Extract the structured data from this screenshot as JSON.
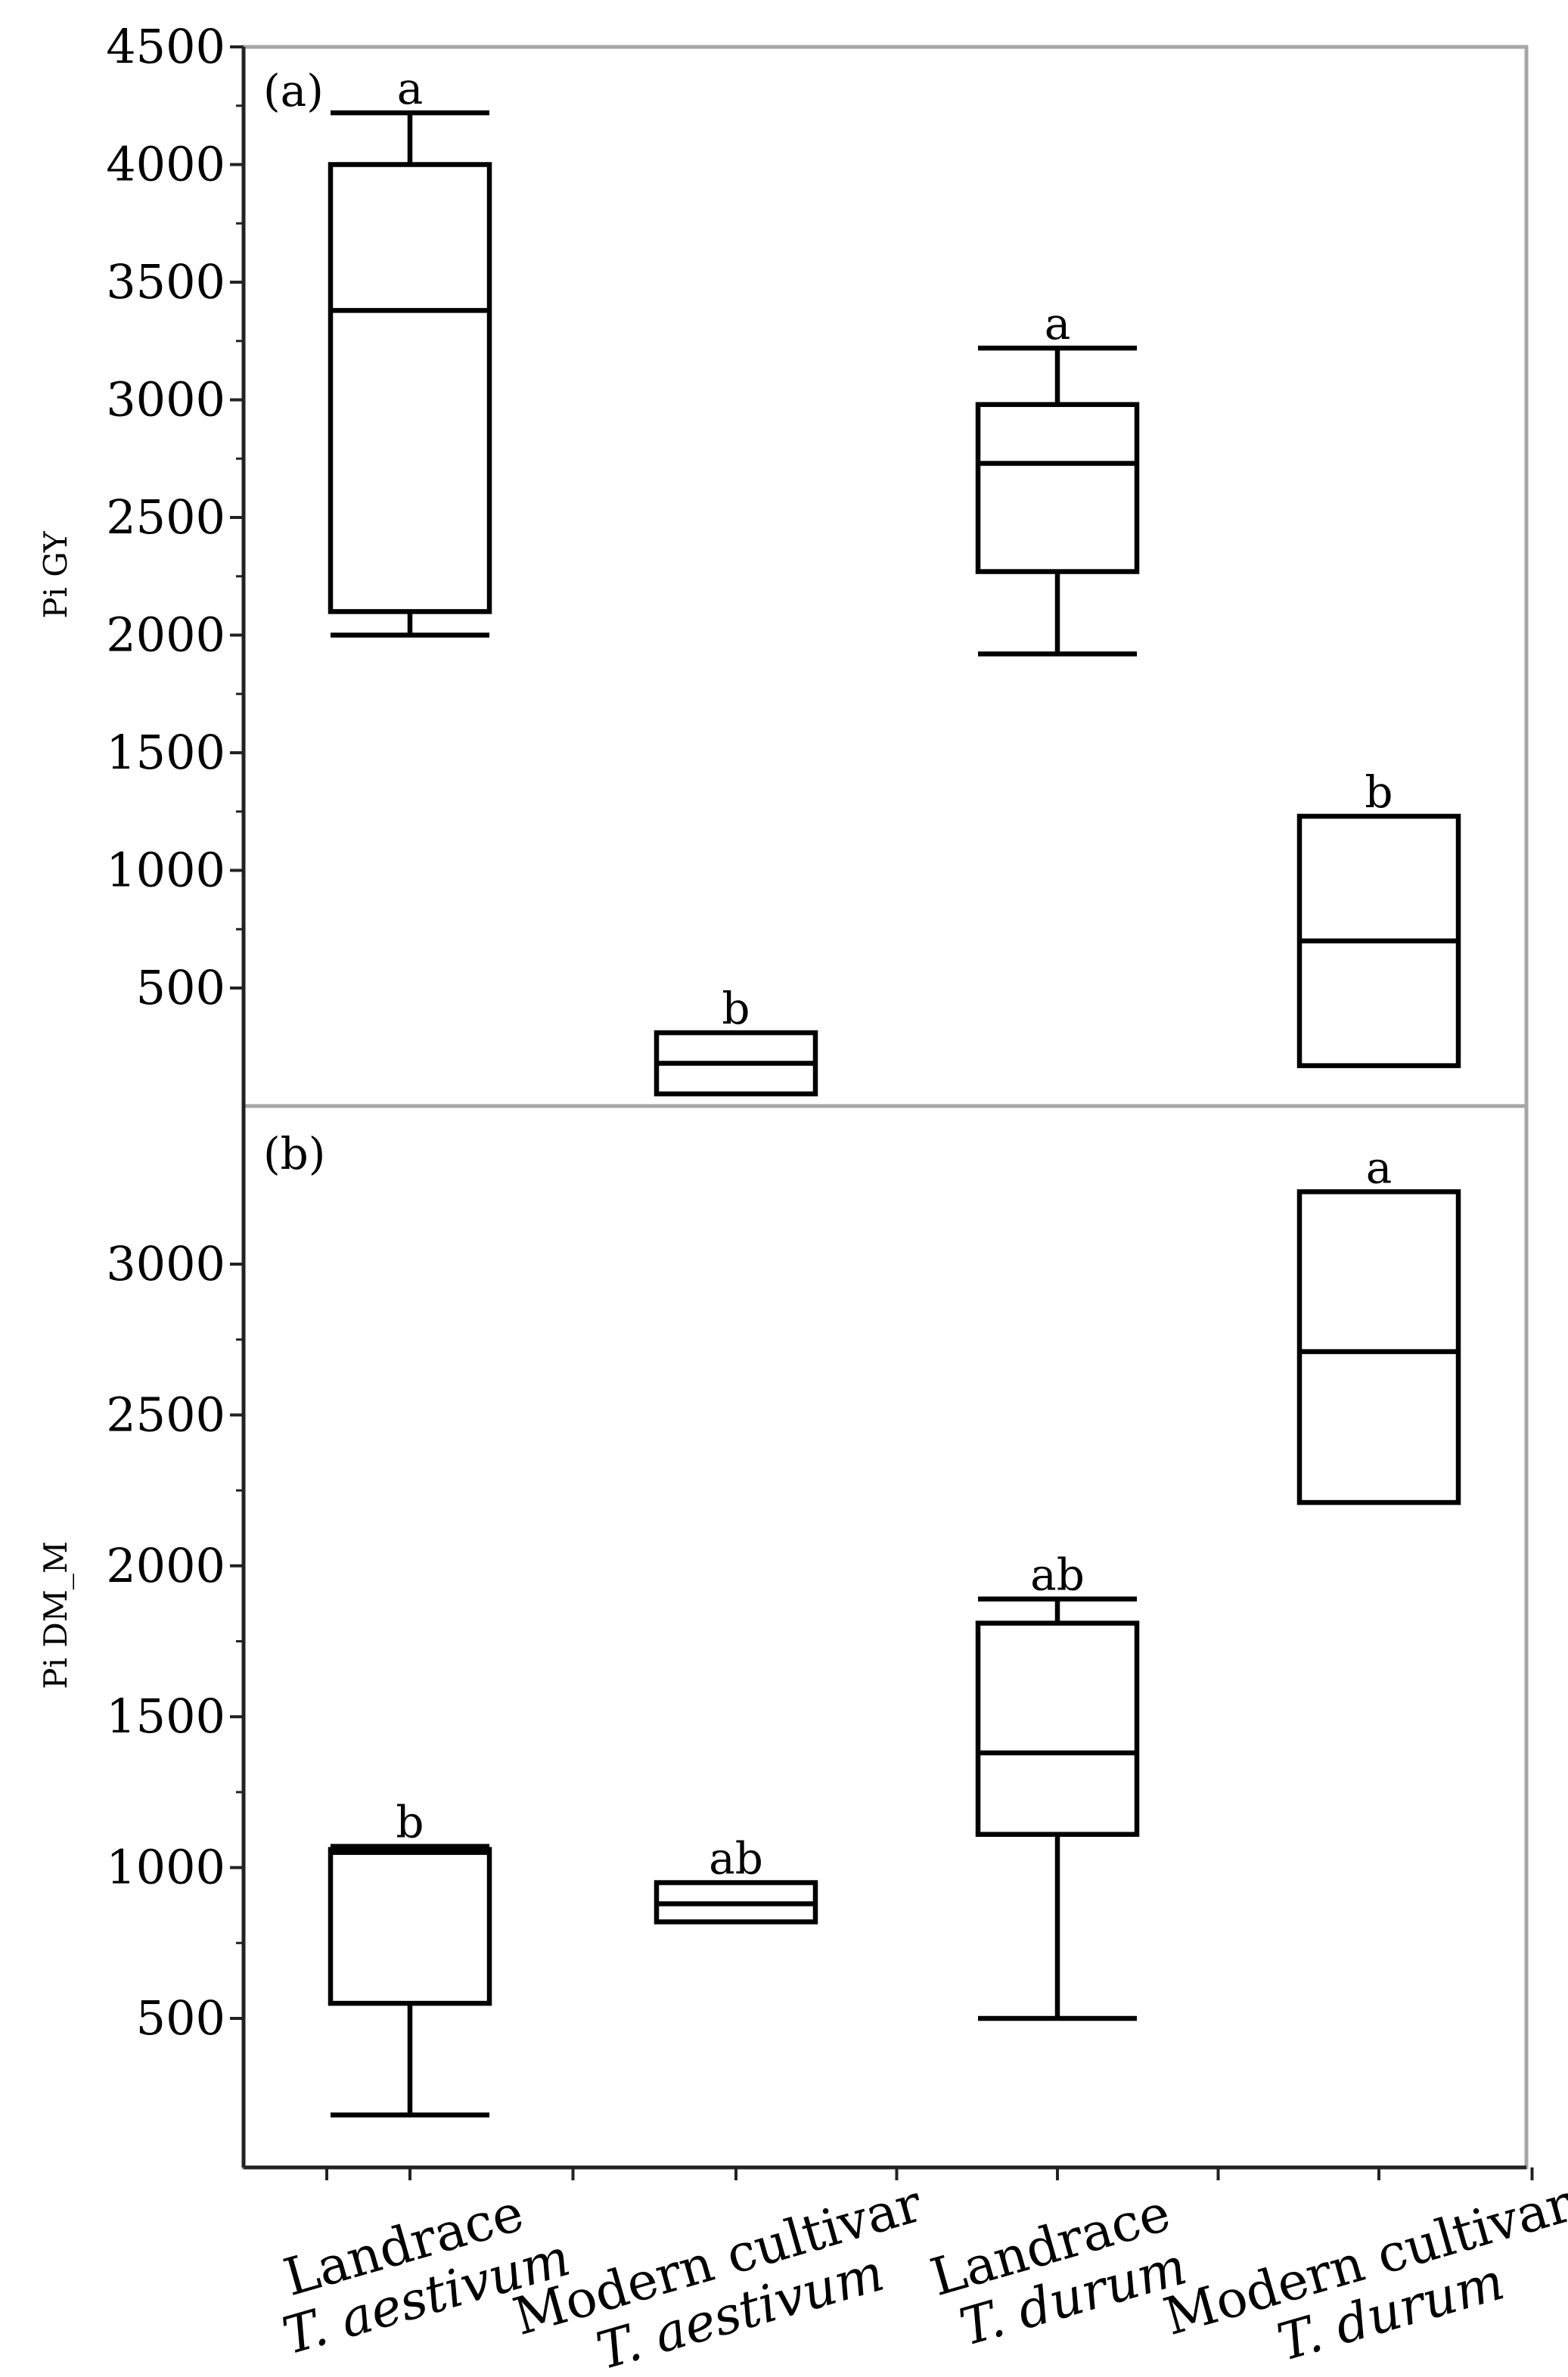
{
  "chart_data": {
    "type": "boxplot",
    "categories": [
      {
        "line1": "Landrace",
        "line2": "T. aestivum"
      },
      {
        "line1": "Modern cultivar",
        "line2": "T. aestivum"
      },
      {
        "line1": "Landrace",
        "line2": "T. durum"
      },
      {
        "line1": "Modern cultivar",
        "line2": "T. durum"
      }
    ],
    "panels": [
      {
        "label": "(a)",
        "ylabel": "Pi GY",
        "ylim": [
          50,
          4500
        ],
        "yticks": [
          500,
          1000,
          1500,
          2000,
          2500,
          3000,
          3500,
          4000,
          4500
        ],
        "boxes": [
          {
            "whisker_low": 2000,
            "q1": 2100,
            "median": 3380,
            "q3": 4000,
            "whisker_high": 4220,
            "sig": "a"
          },
          {
            "whisker_low": 50,
            "q1": 50,
            "median": 180,
            "q3": 310,
            "whisker_high": 310,
            "sig": "b"
          },
          {
            "whisker_low": 1920,
            "q1": 2270,
            "median": 2730,
            "q3": 2980,
            "whisker_high": 3220,
            "sig": "a"
          },
          {
            "whisker_low": 170,
            "q1": 170,
            "median": 700,
            "q3": 1230,
            "whisker_high": 1230,
            "sig": "b"
          }
        ]
      },
      {
        "label": "(b)",
        "ylabel": "Pi DM_M",
        "ylim": [
          0,
          3550
        ],
        "yticks": [
          500,
          1000,
          1500,
          2000,
          2500,
          3000
        ],
        "boxes": [
          {
            "whisker_low": 180,
            "q1": 550,
            "median": 1050,
            "q3": 1060,
            "whisker_high": 1070,
            "sig": "b"
          },
          {
            "whisker_low": 820,
            "q1": 820,
            "median": 880,
            "q3": 950,
            "whisker_high": 950,
            "sig": "ab"
          },
          {
            "whisker_low": 500,
            "q1": 1110,
            "median": 1380,
            "q3": 1810,
            "whisker_high": 1890,
            "sig": "ab"
          },
          {
            "whisker_low": 2210,
            "q1": 2210,
            "median": 2710,
            "q3": 3240,
            "whisker_high": 3240,
            "sig": "a"
          }
        ]
      }
    ]
  }
}
